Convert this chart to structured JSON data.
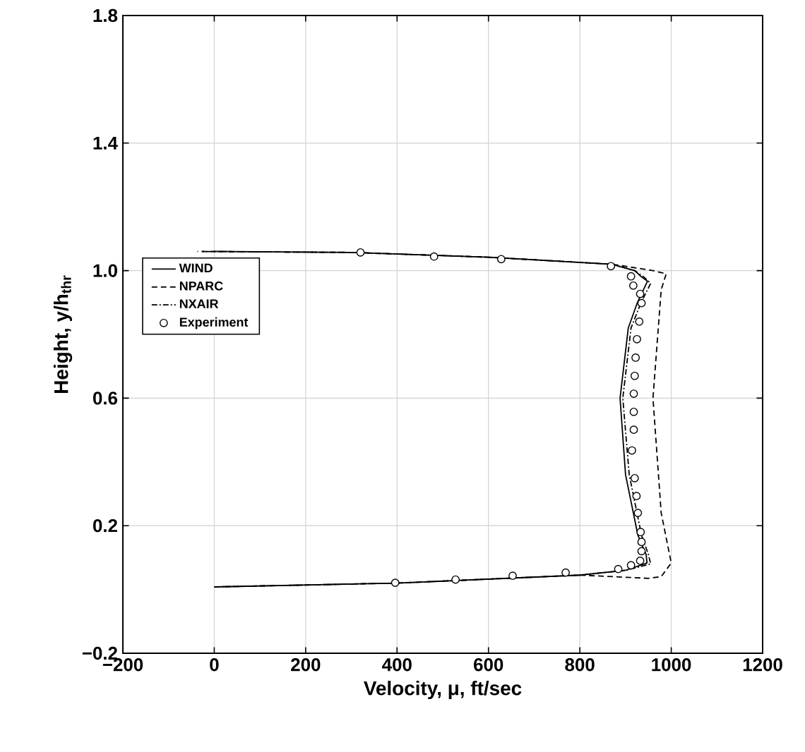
{
  "chart_data": {
    "type": "line",
    "xlabel": "Velocity, μ, ft/sec",
    "ylabel": "Height, y/h$_{thr}$",
    "xlim": [
      -200,
      1200
    ],
    "ylim": [
      -0.2,
      1.8
    ],
    "xticks": [
      {
        "value": -200,
        "label": "−200"
      },
      {
        "value": 0,
        "label": "0"
      },
      {
        "value": 200,
        "label": "200"
      },
      {
        "value": 400,
        "label": "400"
      },
      {
        "value": 600,
        "label": "600"
      },
      {
        "value": 800,
        "label": "800"
      },
      {
        "value": 1000,
        "label": "1000"
      },
      {
        "value": 1200,
        "label": "1200"
      }
    ],
    "yticks": [
      {
        "value": -0.2,
        "label": "−0.2"
      },
      {
        "value": 0.2,
        "label": "0.2"
      },
      {
        "value": 0.6,
        "label": "0.6"
      },
      {
        "value": 1.0,
        "label": "1.0"
      },
      {
        "value": 1.4,
        "label": "1.4"
      },
      {
        "value": 1.8,
        "label": "1.8"
      }
    ],
    "grid": true,
    "legend": "left",
    "series": [
      {
        "name": "WIND",
        "type": "line",
        "color": "#000000",
        "line_style": "solid",
        "x": [
          0,
          400,
          800,
          900,
          947,
          945,
          927,
          900,
          888,
          906,
          926,
          948,
          935,
          920,
          870,
          600,
          300,
          -5
        ],
        "values": [
          0.008,
          0.02,
          0.045,
          0.06,
          0.083,
          0.11,
          0.17,
          0.36,
          0.6,
          0.82,
          0.9,
          0.967,
          0.98,
          1.0,
          1.02,
          1.042,
          1.057,
          1.06
        ]
      },
      {
        "name": "NPARC",
        "type": "line",
        "color": "#000000",
        "line_style": "dashed",
        "x": [
          0,
          400,
          800,
          950,
          978,
          1000,
          978,
          960,
          978,
          989,
          960,
          870,
          600,
          300,
          -37
        ],
        "values": [
          0.008,
          0.02,
          0.045,
          0.035,
          0.04,
          0.083,
          0.24,
          0.6,
          0.94,
          0.99,
          1.0,
          1.02,
          1.042,
          1.057,
          1.06
        ]
      },
      {
        "name": "NXAIR",
        "type": "line",
        "color": "#000000",
        "line_style": "dashdot",
        "x": [
          0,
          400,
          800,
          900,
          955,
          950,
          935,
          908,
          894,
          912,
          934,
          955,
          940,
          920,
          870,
          600,
          300,
          -30
        ],
        "values": [
          0.008,
          0.02,
          0.045,
          0.06,
          0.08,
          0.11,
          0.17,
          0.36,
          0.6,
          0.82,
          0.9,
          0.96,
          0.98,
          1.0,
          1.02,
          1.042,
          1.057,
          1.06
        ]
      },
      {
        "name": "Experiment",
        "type": "scatter",
        "color": "#000000",
        "marker": "circle",
        "x": [
          396,
          528,
          653,
          769,
          884,
          912,
          932,
          935,
          935,
          933,
          927,
          924,
          920,
          914,
          918,
          918,
          918,
          920,
          922,
          925,
          930,
          935,
          932,
          917,
          912,
          868,
          628,
          481,
          320
        ],
        "values": [
          0.021,
          0.031,
          0.043,
          0.053,
          0.064,
          0.076,
          0.09,
          0.12,
          0.149,
          0.18,
          0.24,
          0.293,
          0.349,
          0.436,
          0.501,
          0.557,
          0.614,
          0.67,
          0.727,
          0.785,
          0.84,
          0.898,
          0.927,
          0.953,
          0.982,
          1.014,
          1.036,
          1.044,
          1.057
        ]
      }
    ]
  }
}
